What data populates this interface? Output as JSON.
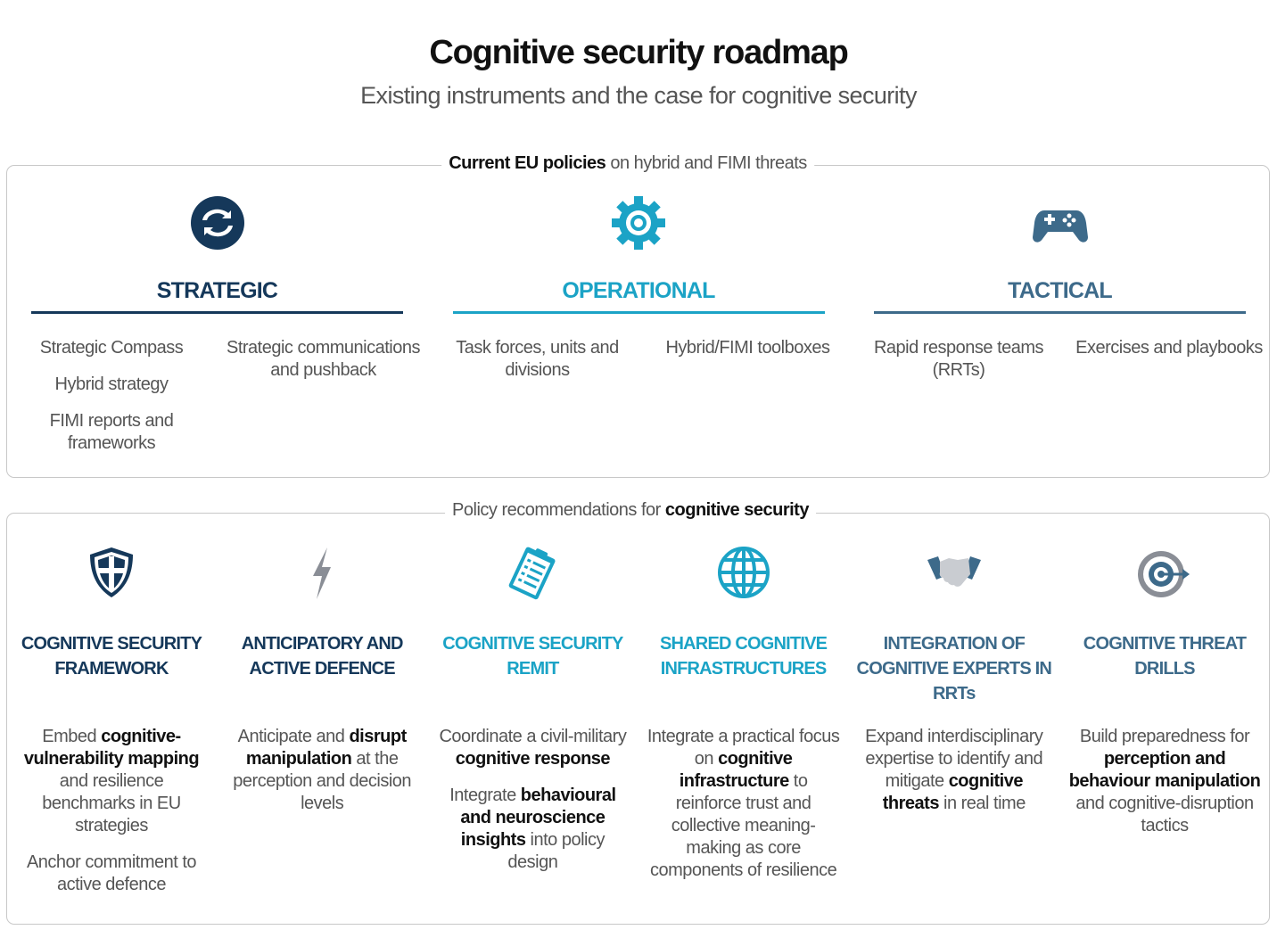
{
  "header": {
    "title": "Cognitive security roadmap",
    "subtitle": "Existing instruments and the case for cognitive security"
  },
  "current_policies": {
    "label": [
      {
        "text": "Current EU policies",
        "bold": true
      },
      {
        "text": " on hybrid and FIMI threats",
        "bold": false
      }
    ],
    "columns": [
      {
        "heading": "STRATEGIC",
        "color": "#15385a",
        "items": [
          [
            "Strategic Compass",
            "Hybrid strategy",
            "FIMI reports and frameworks"
          ],
          [
            "Strategic communications and pushback"
          ]
        ]
      },
      {
        "heading": "OPERATIONAL",
        "color": "#1ba3c6",
        "items": [
          [
            "Task forces, units and divisions"
          ],
          [
            "Hybrid/FIMI toolboxes"
          ]
        ]
      },
      {
        "heading": "TACTICAL",
        "color": "#3d6a8a",
        "items": [
          [
            "Rapid response teams (RRTs)"
          ],
          [
            "Exercises and playbooks"
          ]
        ]
      }
    ]
  },
  "recommendations": {
    "label": [
      {
        "text": "Policy recommendations for ",
        "bold": false
      },
      {
        "text": "cognitive security",
        "bold": true
      }
    ],
    "columns": [
      {
        "heading": "COGNITIVE SECURITY FRAMEWORK",
        "color": "#15385a",
        "paragraphs": [
          [
            {
              "text": "Embed ",
              "bold": false
            },
            {
              "text": "cognitive-vulnerability mapping",
              "bold": true
            },
            {
              "text": " and resilience benchmarks in EU strategies",
              "bold": false
            }
          ],
          [
            {
              "text": "Anchor commitment to active defence",
              "bold": false
            }
          ]
        ]
      },
      {
        "heading": "ANTICIPATORY AND ACTIVE DEFENCE",
        "color": "#15385a",
        "paragraphs": [
          [
            {
              "text": "Anticipate and ",
              "bold": false
            },
            {
              "text": "disrupt manipulation",
              "bold": true
            },
            {
              "text": " at the perception and decision levels",
              "bold": false
            }
          ]
        ]
      },
      {
        "heading": "COGNITIVE SECURITY REMIT",
        "color": "#1ba3c6",
        "paragraphs": [
          [
            {
              "text": "Coordinate a civil-military ",
              "bold": false
            },
            {
              "text": "cognitive response",
              "bold": true
            }
          ],
          [
            {
              "text": "Integrate ",
              "bold": false
            },
            {
              "text": "behavioural and neuroscience insights",
              "bold": true
            },
            {
              "text": " into policy design",
              "bold": false
            }
          ]
        ]
      },
      {
        "heading": "SHARED COGNITIVE INFRASTRUCTURES",
        "color": "#1ba3c6",
        "paragraphs": [
          [
            {
              "text": "Integrate a practical focus on ",
              "bold": false
            },
            {
              "text": "cognitive infrastructure",
              "bold": true
            },
            {
              "text": " to reinforce trust and collective meaning-making as core components of resilience",
              "bold": false
            }
          ]
        ]
      },
      {
        "heading": "INTEGRATION OF COGNITIVE EXPERTS IN RRTs",
        "color": "#3d6a8a",
        "paragraphs": [
          [
            {
              "text": "Expand interdisciplinary expertise to identify and mitigate ",
              "bold": false
            },
            {
              "text": "cognitive threats",
              "bold": true
            },
            {
              "text": " in real time",
              "bold": false
            }
          ]
        ]
      },
      {
        "heading": "COGNITIVE THREAT DRILLS",
        "color": "#3d6a8a",
        "paragraphs": [
          [
            {
              "text": "Build preparedness for ",
              "bold": false
            },
            {
              "text": "perception and behaviour manipulation",
              "bold": true
            },
            {
              "text": " and cognitive-disruption tactics",
              "bold": false
            }
          ]
        ]
      }
    ]
  }
}
